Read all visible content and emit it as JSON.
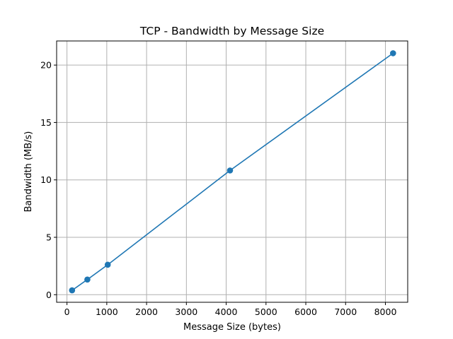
{
  "chart_data": {
    "type": "line",
    "title": "TCP - Bandwidth by Message Size",
    "xlabel": "Message Size (bytes)",
    "ylabel": "Bandwidth (MB/s)",
    "xlim": [
      -260,
      8560
    ],
    "ylim": [
      -0.66,
      22.1
    ],
    "xticks": [
      0,
      1000,
      2000,
      3000,
      4000,
      5000,
      6000,
      7000,
      8000
    ],
    "yticks": [
      0,
      5,
      10,
      15,
      20
    ],
    "grid": true,
    "series": [
      {
        "color": "#1f77b4",
        "marker": "circle",
        "points": [
          {
            "x": 128,
            "y": 0.38
          },
          {
            "x": 512,
            "y": 1.32
          },
          {
            "x": 1024,
            "y": 2.61
          },
          {
            "x": 4096,
            "y": 10.82
          },
          {
            "x": 8192,
            "y": 21.03
          }
        ]
      }
    ]
  }
}
